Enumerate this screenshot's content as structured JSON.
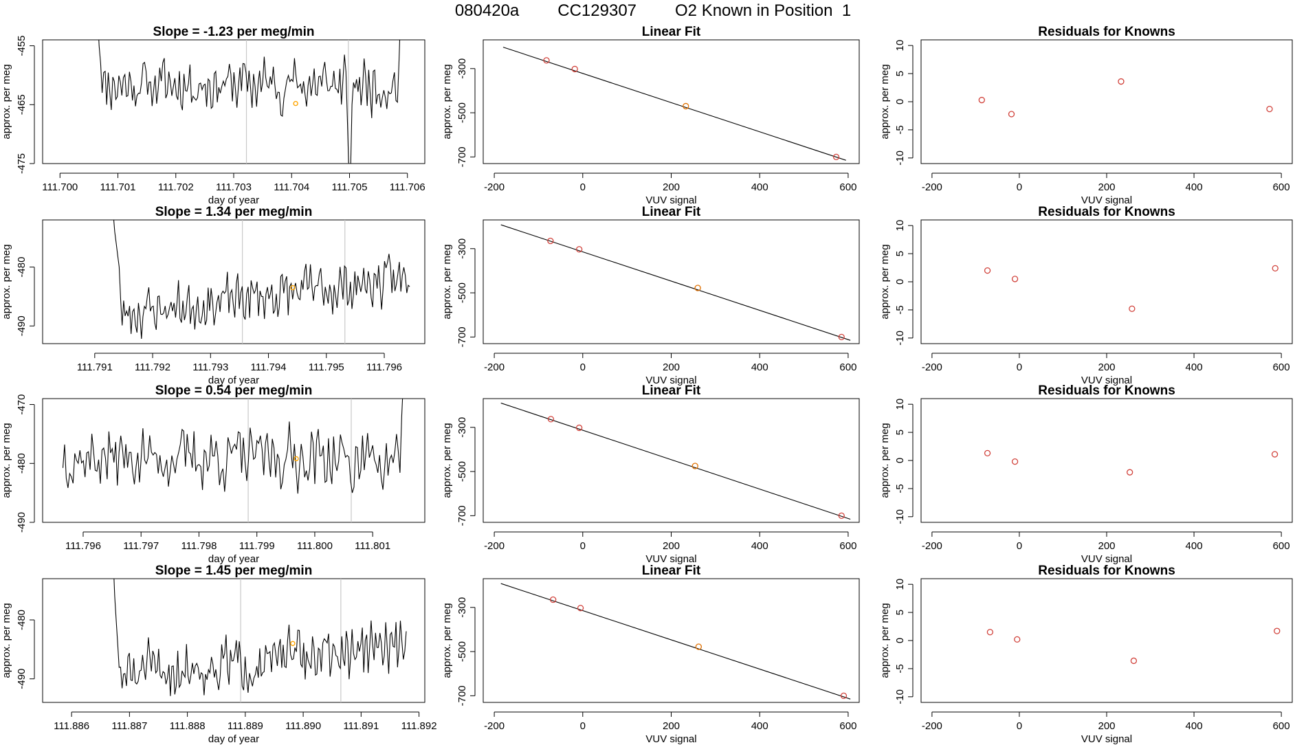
{
  "page_title": [
    "080420a",
    "CC129307",
    "O2 Known in Position  1"
  ],
  "chart_data": [
    {
      "type": "line",
      "row": 0,
      "title": "Slope =  -1.23  per meg/min",
      "xlabel": "day of year",
      "ylabel": "approx. per meg",
      "x_ticks": [
        "111.700",
        "111.701",
        "111.702",
        "111.703",
        "111.704",
        "111.705",
        "111.706"
      ],
      "x_tick_values": [
        111.7,
        111.701,
        111.702,
        111.703,
        111.704,
        111.705,
        111.706
      ],
      "y_ticks": [
        "-455",
        "-465",
        "-475"
      ],
      "y_tick_values": [
        -455,
        -465,
        -475
      ],
      "xlim": [
        111.6997,
        111.7063
      ],
      "ylim": [
        -475,
        -454
      ],
      "vlines": [
        111.70322,
        111.70498
      ],
      "x_start": 111.70065,
      "x_end": 111.70588,
      "baseline": -461.5,
      "noise": 2.0,
      "start_values": [
        -450,
        -455,
        -458,
        -463
      ],
      "end_values": [
        -458,
        -450
      ],
      "orange_point": [
        111.70407,
        -464.8
      ],
      "dip": {
        "x": 111.70497,
        "values": [
          -468,
          -477,
          -477,
          -465
        ]
      },
      "seed": 11,
      "colors": {
        "line": "#000000",
        "vline": "#c8c8c8",
        "marker": "#ffa500"
      }
    },
    {
      "type": "scatter",
      "row": 0,
      "title": "Linear Fit",
      "xlabel": "VUV signal",
      "ylabel": "approx. per meg",
      "x_ticks": [
        "-200",
        "0",
        "200",
        "400",
        "600"
      ],
      "x_tick_values": [
        -200,
        0,
        200,
        400,
        600
      ],
      "y_ticks": [
        "-300",
        "-500",
        "-700"
      ],
      "y_tick_values": [
        -300,
        -500,
        -700
      ],
      "xlim": [
        -225,
        625
      ],
      "ylim": [
        -730,
        -170
      ],
      "points": [
        {
          "x": -82,
          "y": -263,
          "color": "#d1413a"
        },
        {
          "x": -18,
          "y": -302,
          "color": "#d1413a"
        },
        {
          "x": 233,
          "y": -470,
          "color": "#e07000"
        },
        {
          "x": 573,
          "y": -700,
          "color": "#d1413a"
        }
      ],
      "fit_line": [
        [
          -180,
          -203
        ],
        [
          595,
          -715
        ]
      ]
    },
    {
      "type": "scatter",
      "row": 0,
      "title": "Residuals for Knowns",
      "xlabel": "VUV signal",
      "ylabel": "approx. per meg",
      "x_ticks": [
        "-200",
        "0",
        "200",
        "400",
        "600"
      ],
      "x_tick_values": [
        -200,
        0,
        200,
        400,
        600
      ],
      "y_ticks": [
        "10",
        "5",
        "0",
        "-5",
        "-10"
      ],
      "y_tick_values": [
        10,
        5,
        0,
        -5,
        -10
      ],
      "xlim": [
        -225,
        625
      ],
      "ylim": [
        -11,
        11
      ],
      "points": [
        {
          "x": -86,
          "y": 0.3,
          "color": "#d1413a"
        },
        {
          "x": -18,
          "y": -2.2,
          "color": "#d1413a"
        },
        {
          "x": 233,
          "y": 3.6,
          "color": "#d1413a"
        },
        {
          "x": 573,
          "y": -1.3,
          "color": "#d1413a"
        }
      ]
    },
    {
      "type": "line",
      "row": 1,
      "title": "Slope =  1.34  per meg/min",
      "xlabel": "day of year",
      "ylabel": "approx. per meg",
      "x_ticks": [
        "111.791",
        "111.792",
        "111.793",
        "111.794",
        "111.795",
        "111.796"
      ],
      "x_tick_values": [
        111.791,
        111.792,
        111.793,
        111.794,
        111.795,
        111.796
      ],
      "y_ticks": [
        "-480",
        "-490"
      ],
      "y_tick_values": [
        -480,
        -490
      ],
      "xlim": [
        111.7901,
        111.7967
      ],
      "ylim": [
        -493,
        -472
      ],
      "vlines": [
        111.79355,
        111.79532
      ],
      "x_start": 111.79132,
      "x_end": 111.79644,
      "baseline": -485.0,
      "drift": 6.0,
      "noise": 1.8,
      "start_values": [
        -471,
        -474,
        -476,
        -478,
        -480
      ],
      "end_values": [],
      "orange_point": [
        111.79442,
        -483.5
      ],
      "seed": 23,
      "colors": {
        "line": "#000000",
        "vline": "#c8c8c8",
        "marker": "#ffa500"
      }
    },
    {
      "type": "scatter",
      "row": 1,
      "title": "Linear Fit",
      "xlabel": "VUV signal",
      "ylabel": "approx. per meg",
      "x_ticks": [
        "-200",
        "0",
        "200",
        "400",
        "600"
      ],
      "x_tick_values": [
        -200,
        0,
        200,
        400,
        600
      ],
      "y_ticks": [
        "-300",
        "-500",
        "-700"
      ],
      "y_tick_values": [
        -300,
        -500,
        -700
      ],
      "xlim": [
        -225,
        625
      ],
      "ylim": [
        -730,
        -170
      ],
      "points": [
        {
          "x": -73,
          "y": -265,
          "color": "#d1413a"
        },
        {
          "x": -8,
          "y": -303,
          "color": "#d1413a"
        },
        {
          "x": 260,
          "y": -478,
          "color": "#e07000"
        },
        {
          "x": 585,
          "y": -700,
          "color": "#d1413a"
        }
      ],
      "fit_line": [
        [
          -185,
          -192
        ],
        [
          605,
          -715
        ]
      ]
    },
    {
      "type": "scatter",
      "row": 1,
      "title": "Residuals for Knowns",
      "xlabel": "VUV signal",
      "ylabel": "approx. per meg",
      "x_ticks": [
        "-200",
        "0",
        "200",
        "400",
        "600"
      ],
      "x_tick_values": [
        -200,
        0,
        200,
        400,
        600
      ],
      "y_ticks": [
        "10",
        "5",
        "0",
        "-5",
        "-10"
      ],
      "y_tick_values": [
        10,
        5,
        0,
        -5,
        -10
      ],
      "xlim": [
        -225,
        625
      ],
      "ylim": [
        -11,
        11
      ],
      "points": [
        {
          "x": -73,
          "y": 2.0,
          "color": "#d1413a"
        },
        {
          "x": -10,
          "y": 0.5,
          "color": "#d1413a"
        },
        {
          "x": 258,
          "y": -4.8,
          "color": "#d1413a"
        },
        {
          "x": 586,
          "y": 2.4,
          "color": "#d1413a"
        }
      ]
    },
    {
      "type": "line",
      "row": 2,
      "title": "Slope =  0.54  per meg/min",
      "xlabel": "day of year",
      "ylabel": "approx. per meg",
      "x_ticks": [
        "111.796",
        "111.797",
        "111.798",
        "111.799",
        "111.800",
        "111.801"
      ],
      "x_tick_values": [
        111.796,
        111.797,
        111.798,
        111.799,
        111.8,
        111.801
      ],
      "y_ticks": [
        "-470",
        "-480",
        "-490"
      ],
      "y_tick_values": [
        -470,
        -480,
        -490
      ],
      "xlim": [
        111.7953,
        111.8019
      ],
      "ylim": [
        -490,
        -469
      ],
      "vlines": [
        111.79885,
        111.80063
      ],
      "x_start": 111.79565,
      "x_end": 111.80153,
      "baseline": -479.0,
      "noise": 2.2,
      "start_values": [],
      "end_values": [
        -472,
        -466
      ],
      "orange_point": [
        111.79968,
        -479.2
      ],
      "dip": {
        "x": 111.80062,
        "values": [
          -483,
          -485,
          -484
        ]
      },
      "seed": 37,
      "colors": {
        "line": "#000000",
        "vline": "#c8c8c8",
        "marker": "#ffa500"
      }
    },
    {
      "type": "scatter",
      "row": 2,
      "title": "Linear Fit",
      "xlabel": "VUV signal",
      "ylabel": "approx. per meg",
      "x_ticks": [
        "-200",
        "0",
        "200",
        "400",
        "600"
      ],
      "x_tick_values": [
        -200,
        0,
        200,
        400,
        600
      ],
      "y_ticks": [
        "-300",
        "-500",
        "-700"
      ],
      "y_tick_values": [
        -300,
        -500,
        -700
      ],
      "xlim": [
        -225,
        625
      ],
      "ylim": [
        -730,
        -170
      ],
      "points": [
        {
          "x": -72,
          "y": -263,
          "color": "#d1413a"
        },
        {
          "x": -8,
          "y": -302,
          "color": "#d1413a"
        },
        {
          "x": 254,
          "y": -475,
          "color": "#e07000"
        },
        {
          "x": 585,
          "y": -700,
          "color": "#d1413a"
        }
      ],
      "fit_line": [
        [
          -185,
          -190
        ],
        [
          605,
          -716
        ]
      ]
    },
    {
      "type": "scatter",
      "row": 2,
      "title": "Residuals for Knowns",
      "xlabel": "VUV signal",
      "ylabel": "approx. per meg",
      "x_ticks": [
        "-200",
        "0",
        "200",
        "400",
        "600"
      ],
      "x_tick_values": [
        -200,
        0,
        200,
        400,
        600
      ],
      "y_ticks": [
        "10",
        "5",
        "0",
        "-5",
        "-10"
      ],
      "y_tick_values": [
        10,
        5,
        0,
        -5,
        -10
      ],
      "xlim": [
        -225,
        625
      ],
      "ylim": [
        -11,
        11
      ],
      "points": [
        {
          "x": -73,
          "y": 1.3,
          "color": "#d1413a"
        },
        {
          "x": -10,
          "y": -0.2,
          "color": "#d1413a"
        },
        {
          "x": 253,
          "y": -2.1,
          "color": "#d1413a"
        },
        {
          "x": 585,
          "y": 1.1,
          "color": "#d1413a"
        }
      ]
    },
    {
      "type": "line",
      "row": 3,
      "title": "Slope =  1.45  per meg/min",
      "xlabel": "day of year",
      "ylabel": "approx. per meg",
      "x_ticks": [
        "111.886",
        "111.887",
        "111.888",
        "111.889",
        "111.890",
        "111.891",
        "111.892"
      ],
      "x_tick_values": [
        111.886,
        111.887,
        111.888,
        111.889,
        111.89,
        111.891,
        111.892
      ],
      "y_ticks": [
        "-480",
        "-490"
      ],
      "y_tick_values": [
        -480,
        -490
      ],
      "xlim": [
        111.8855,
        111.8921
      ],
      "ylim": [
        -494,
        -473
      ],
      "vlines": [
        111.88892,
        111.89065
      ],
      "x_start": 111.88672,
      "x_end": 111.89178,
      "baseline": -487.0,
      "drift": 5.0,
      "noise": 2.0,
      "start_values": [
        -470,
        -476,
        -480,
        -484
      ],
      "end_values": [],
      "orange_point": [
        111.88982,
        -484.0
      ],
      "seed": 51,
      "colors": {
        "line": "#000000",
        "vline": "#c8c8c8",
        "marker": "#ffa500"
      }
    },
    {
      "type": "scatter",
      "row": 3,
      "title": "Linear Fit",
      "xlabel": "VUV signal",
      "ylabel": "approx. per meg",
      "x_ticks": [
        "-200",
        "0",
        "200",
        "400",
        "600"
      ],
      "x_tick_values": [
        -200,
        0,
        200,
        400,
        600
      ],
      "y_ticks": [
        "-300",
        "-500",
        "-700"
      ],
      "y_tick_values": [
        -300,
        -500,
        -700
      ],
      "xlim": [
        -225,
        625
      ],
      "ylim": [
        -730,
        -170
      ],
      "points": [
        {
          "x": -67,
          "y": -265,
          "color": "#d1413a"
        },
        {
          "x": -5,
          "y": -303,
          "color": "#d1413a"
        },
        {
          "x": 262,
          "y": -478,
          "color": "#e07000"
        },
        {
          "x": 590,
          "y": -700,
          "color": "#d1413a"
        }
      ],
      "fit_line": [
        [
          -185,
          -192
        ],
        [
          605,
          -715
        ]
      ]
    },
    {
      "type": "scatter",
      "row": 3,
      "title": "Residuals for Knowns",
      "xlabel": "VUV signal",
      "ylabel": "approx. per meg",
      "x_ticks": [
        "-200",
        "0",
        "200",
        "400",
        "600"
      ],
      "x_tick_values": [
        -200,
        0,
        200,
        400,
        600
      ],
      "y_ticks": [
        "10",
        "5",
        "0",
        "-5",
        "-10"
      ],
      "y_tick_values": [
        10,
        5,
        0,
        -5,
        -10
      ],
      "xlim": [
        -225,
        625
      ],
      "ylim": [
        -11,
        11
      ],
      "points": [
        {
          "x": -67,
          "y": 1.5,
          "color": "#d1413a"
        },
        {
          "x": -5,
          "y": 0.2,
          "color": "#d1413a"
        },
        {
          "x": 262,
          "y": -3.6,
          "color": "#d1413a"
        },
        {
          "x": 590,
          "y": 1.7,
          "color": "#d1413a"
        }
      ]
    }
  ]
}
